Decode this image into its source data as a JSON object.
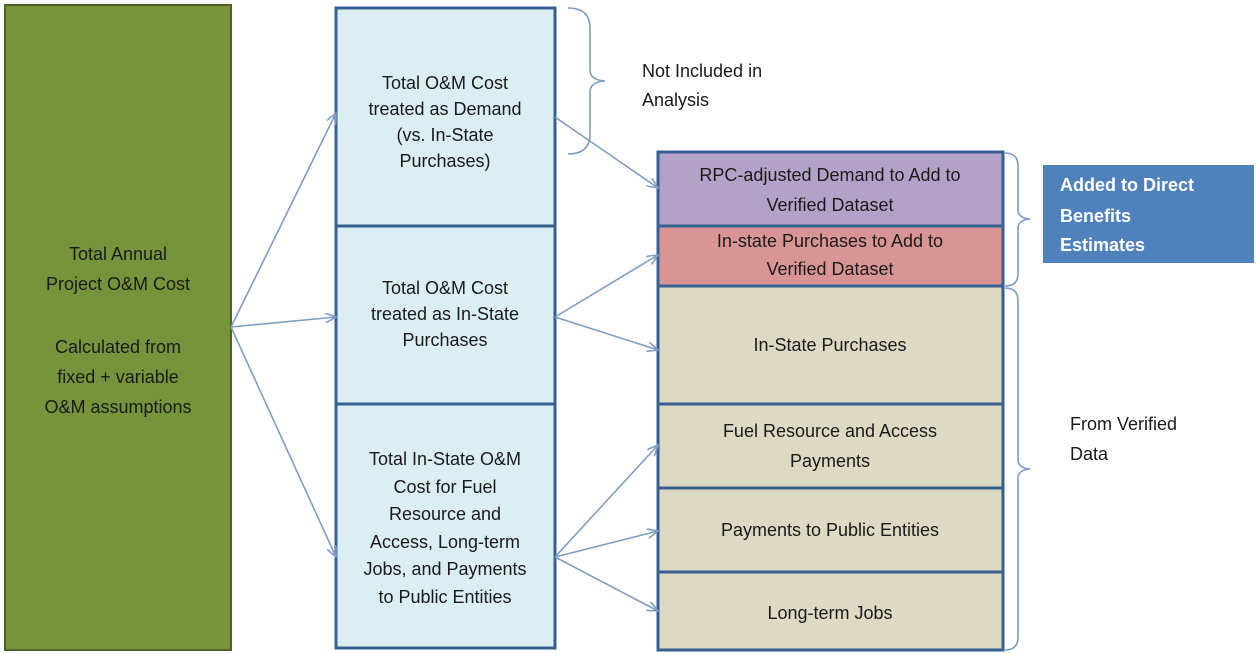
{
  "source": {
    "lines": [
      "Total Annual",
      "Project O&M Cost",
      "Calculated from",
      "fixed + variable",
      "O&M assumptions"
    ]
  },
  "middle": [
    {
      "lines": [
        "Total O&M Cost",
        "treated as Demand",
        "(vs. In-State",
        "Purchases)"
      ]
    },
    {
      "lines": [
        "Total O&M Cost",
        "treated as In-State",
        "Purchases"
      ]
    },
    {
      "lines": [
        "Total In-State O&M",
        "Cost for Fuel",
        "Resource and",
        "Access, Long-term",
        "Jobs, and Payments",
        "to Public Entities"
      ]
    }
  ],
  "right": [
    {
      "lines": [
        "RPC-adjusted Demand to Add to",
        "Verified Dataset"
      ]
    },
    {
      "lines": [
        "In-state Purchases to Add to",
        "Verified Dataset"
      ]
    },
    {
      "lines": [
        "In-State Purchases"
      ]
    },
    {
      "lines": [
        "Fuel Resource and Access",
        "Payments"
      ]
    },
    {
      "lines": [
        "Payments to Public Entities"
      ]
    },
    {
      "lines": [
        "Long-term Jobs"
      ]
    }
  ],
  "annotations": {
    "not_included": [
      "Not Included in",
      "Analysis"
    ],
    "added": [
      "Added to Direct",
      "Benefits",
      "Estimates"
    ],
    "from_verified": [
      "From Verified",
      "Data"
    ]
  }
}
